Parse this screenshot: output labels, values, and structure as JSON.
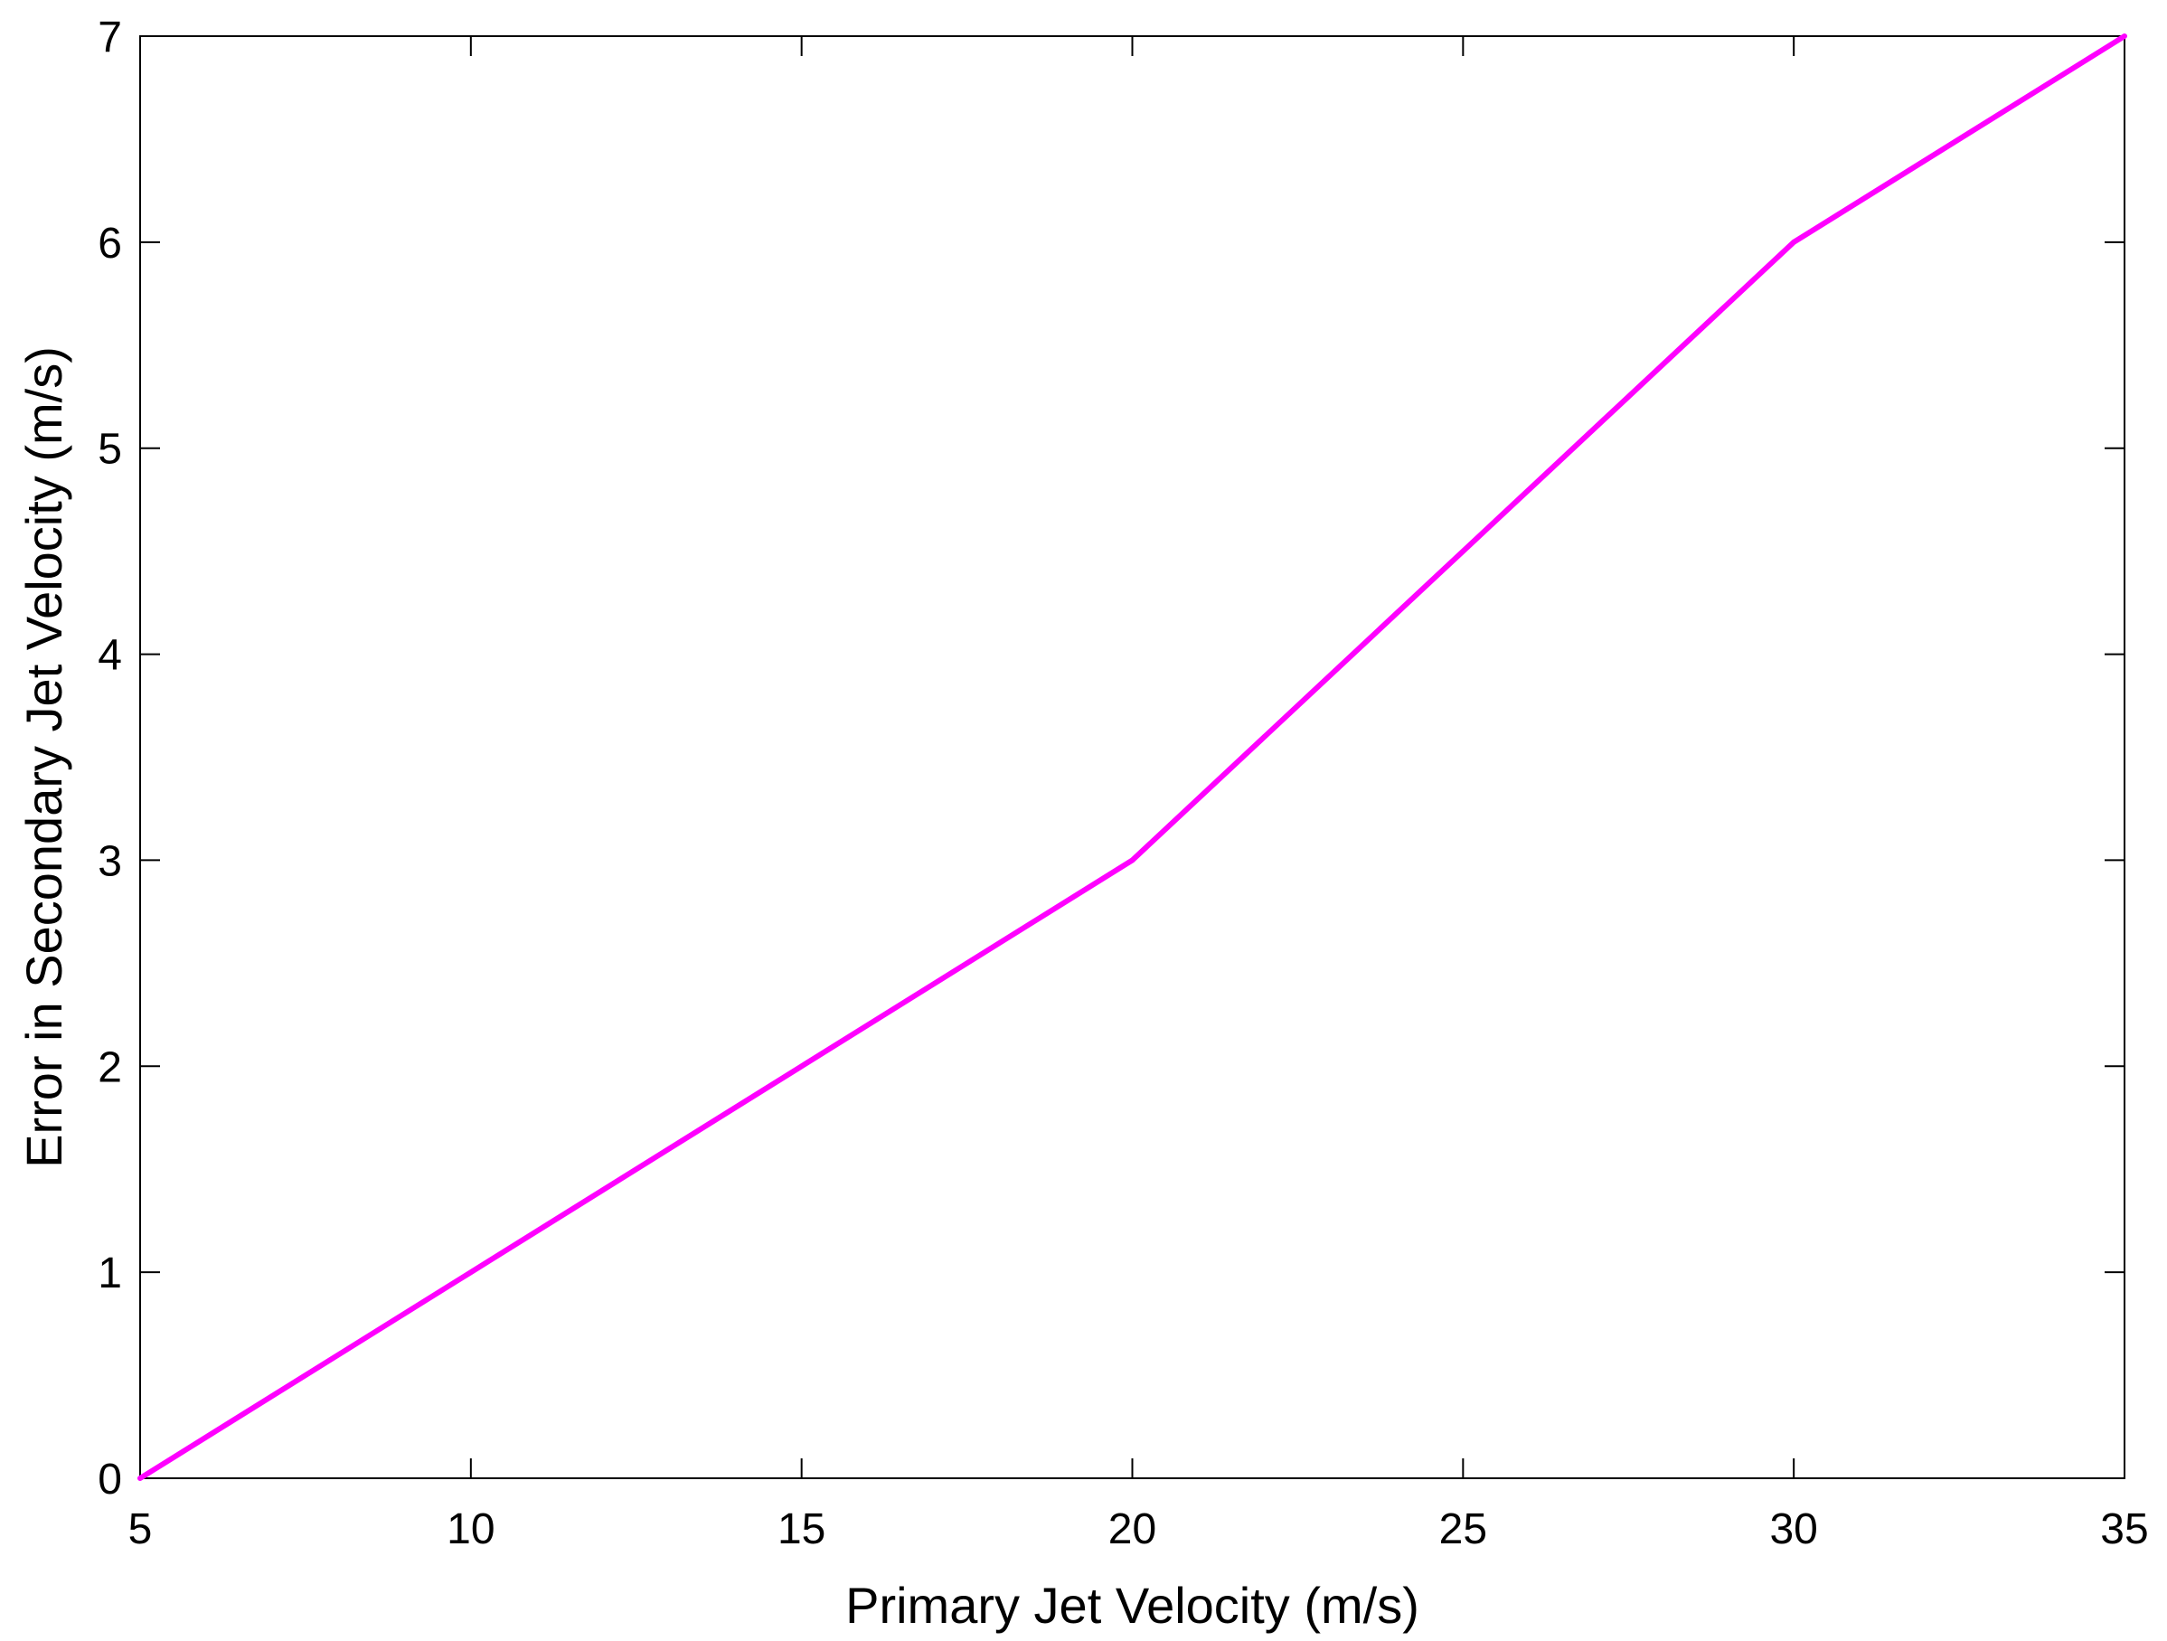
{
  "chart_data": {
    "type": "line",
    "title": "",
    "xlabel": "Primary Jet Velocity (m/s)",
    "ylabel": "Error in Secondary Jet Velocity (m/s)",
    "xlim": [
      5,
      35
    ],
    "ylim": [
      0,
      7
    ],
    "xticks": [
      5,
      10,
      15,
      20,
      25,
      30,
      35
    ],
    "yticks": [
      0,
      1,
      2,
      3,
      4,
      5,
      6,
      7
    ],
    "grid": false,
    "legend": "none",
    "series": [
      {
        "color": "#ff00ff",
        "x": [
          5,
          10,
          15,
          20,
          25,
          30,
          35
        ],
        "y": [
          0,
          1,
          2,
          3,
          4.5,
          6,
          7
        ]
      }
    ]
  }
}
